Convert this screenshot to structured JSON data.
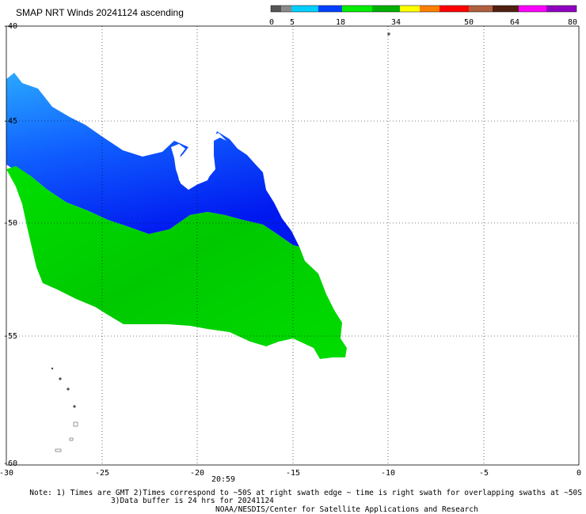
{
  "title": "SMAP NRT Winds 20241124 ascending",
  "colorbar": {
    "tick_labels": [
      "0",
      "5",
      "18",
      "34",
      "50",
      "64",
      "80"
    ],
    "colors": [
      "#555555",
      "#8a8a8a",
      "#00cfff",
      "#0040ff",
      "#00ee00",
      "#00b000",
      "#ffff00",
      "#ff8000",
      "#ff0000",
      "#b06040",
      "#502010",
      "#ff00ff",
      "#9000c0"
    ]
  },
  "map": {
    "lon_range": [
      -30,
      0
    ],
    "lat_range": [
      -60,
      -45
    ],
    "x_tick_labels": [
      "-30",
      "-25",
      "-20",
      "-15",
      "-10",
      "-5",
      "0"
    ],
    "y_tick_labels": [
      "-40",
      "-45",
      "-50",
      "-55",
      "-60"
    ],
    "grid": "dashed",
    "time_label": "20:59",
    "colors": {
      "light_blue": "#33c4ff",
      "blue": "#0033ff",
      "green": "#00d800",
      "land": "#555555"
    }
  },
  "notes": {
    "line1": "Note: 1) Times are GMT 2)Times correspond to ~50S at right swath edge ~ time is right swath for overlapping swaths at ~50S",
    "line2": "3)Data buffer is 24 hrs for 20241124",
    "line3": "NOAA/NESDIS/Center for Satellite Applications and Research"
  }
}
